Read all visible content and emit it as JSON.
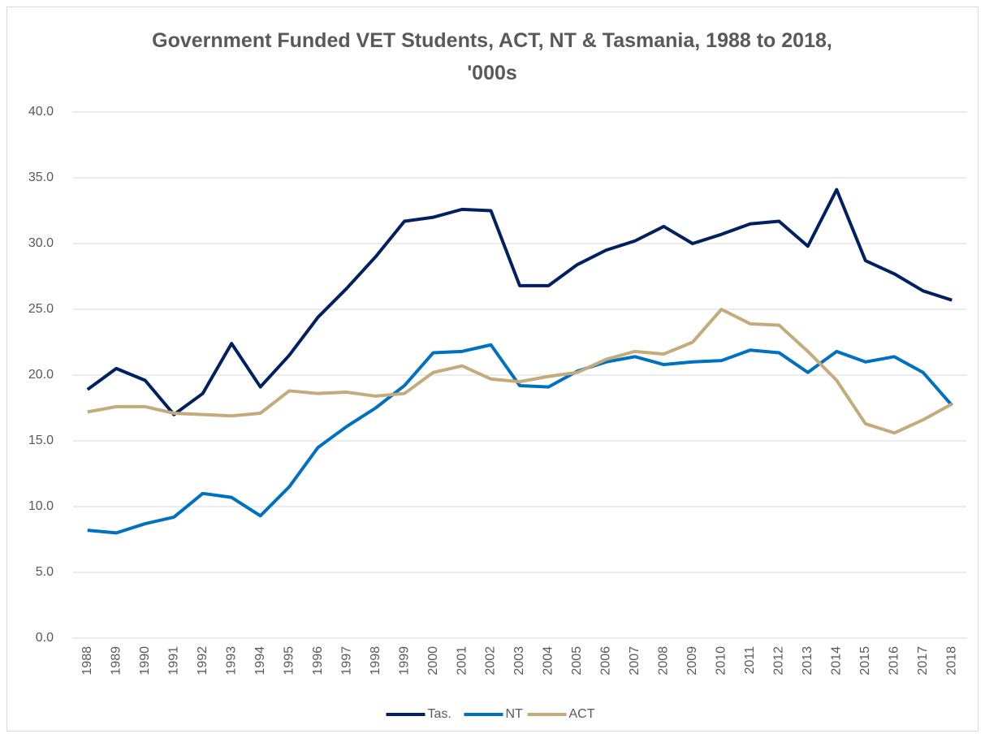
{
  "chart_data": {
    "type": "line",
    "title": "Government Funded VET Students, ACT, NT & Tasmania, 1988 to 2018, '000s",
    "categories": [
      "1988",
      "1989",
      "1990",
      "1991",
      "1992",
      "1993",
      "1994",
      "1995",
      "1996",
      "1997",
      "1998",
      "1999",
      "2000",
      "2001",
      "2002",
      "2003",
      "2004",
      "2005",
      "2006",
      "2007",
      "2008",
      "2009",
      "2010",
      "2011",
      "2012",
      "2013",
      "2014",
      "2015",
      "2016",
      "2017",
      "2018"
    ],
    "series": [
      {
        "name": "Tas.",
        "color": "#002060",
        "values": [
          18.9,
          20.5,
          19.6,
          17.0,
          18.6,
          22.4,
          19.1,
          21.5,
          24.4,
          26.6,
          29.0,
          31.7,
          32.0,
          32.6,
          32.5,
          26.8,
          26.8,
          28.4,
          29.5,
          30.2,
          31.3,
          30.0,
          30.7,
          31.5,
          31.7,
          29.8,
          34.1,
          28.7,
          27.7,
          26.4,
          25.7
        ]
      },
      {
        "name": "NT",
        "color": "#0070c0",
        "values": [
          8.2,
          8.0,
          8.7,
          9.2,
          11.0,
          10.7,
          9.3,
          11.5,
          14.5,
          16.1,
          17.5,
          19.2,
          21.7,
          21.8,
          22.3,
          19.2,
          19.1,
          20.3,
          21.0,
          21.4,
          20.8,
          21.0,
          21.1,
          21.9,
          21.7,
          20.2,
          21.8,
          21.0,
          21.4,
          20.2,
          17.7
        ]
      },
      {
        "name": "ACT",
        "color": "#c4ab7c",
        "values": [
          17.2,
          17.6,
          17.6,
          17.1,
          17.0,
          16.9,
          17.1,
          18.8,
          18.6,
          18.7,
          18.4,
          18.6,
          20.2,
          20.7,
          19.7,
          19.5,
          19.9,
          20.2,
          21.2,
          21.8,
          21.6,
          22.5,
          25.0,
          23.9,
          23.8,
          21.8,
          19.6,
          16.3,
          15.6,
          16.6,
          17.8
        ]
      }
    ],
    "ylim": [
      0,
      40
    ],
    "yticks": [
      {
        "value": 0,
        "label": "0.0"
      },
      {
        "value": 5,
        "label": "5.0"
      },
      {
        "value": 10,
        "label": "10.0"
      },
      {
        "value": 15,
        "label": "15.0"
      },
      {
        "value": 20,
        "label": "20.0"
      },
      {
        "value": 25,
        "label": "25.0"
      },
      {
        "value": 30,
        "label": "30.0"
      },
      {
        "value": 35,
        "label": "35.0"
      },
      {
        "value": 40,
        "label": "40.0"
      }
    ],
    "grid": true,
    "legend": "bottom"
  }
}
